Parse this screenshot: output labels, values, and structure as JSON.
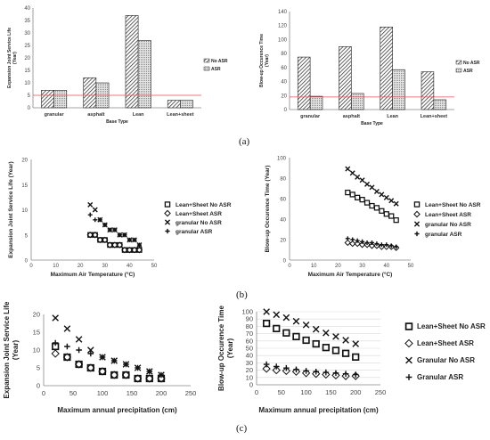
{
  "panel_labels": {
    "a": "(a)",
    "b": "(b)",
    "c": "(c)"
  },
  "colors": {
    "threshold": "#e05050",
    "marker": "#111111",
    "axis": "#888888",
    "grid": "#d9d9d9"
  },
  "chart_data": [
    {
      "type": "bar",
      "xlabel": "Base Type",
      "ylabel": "Expansion Joint Service Life (Year)",
      "categories": [
        "granular",
        "asphalt",
        "Lean",
        "Lean+sheet"
      ],
      "ylim": [
        0,
        40
      ],
      "yticks": [
        0,
        5,
        10,
        15,
        20,
        25,
        30,
        35,
        40
      ],
      "threshold": 5,
      "series": [
        {
          "name": "No ASR",
          "pattern": "hatch",
          "values": [
            7,
            12,
            37,
            3
          ]
        },
        {
          "name": "ASR",
          "pattern": "dots",
          "values": [
            7,
            10,
            27,
            3
          ]
        }
      ],
      "legend": "right"
    },
    {
      "type": "bar",
      "xlabel": "Base Type",
      "ylabel": "Blow-up Occurence Time (Year)",
      "categories": [
        "granular",
        "asphalt",
        "Lean",
        "Lean+sheet"
      ],
      "ylim": [
        0,
        140
      ],
      "yticks": [
        0,
        20,
        40,
        60,
        80,
        100,
        120,
        140
      ],
      "threshold": 18,
      "series": [
        {
          "name": "No ASR",
          "pattern": "hatch",
          "values": [
            75,
            90,
            118,
            54
          ]
        },
        {
          "name": "ASR",
          "pattern": "dots",
          "values": [
            19,
            23,
            57,
            14
          ]
        }
      ],
      "legend": "right"
    },
    {
      "type": "scatter",
      "xlabel": "Maximum Air Temperature (°C)",
      "ylabel": "Expansion Joint Service Life (Year)",
      "xlim": [
        0,
        50
      ],
      "xticks": [
        0,
        10,
        20,
        30,
        40,
        50
      ],
      "ylim": [
        0,
        20
      ],
      "yticks": [
        0,
        5,
        10,
        15,
        20
      ],
      "x": [
        24,
        26,
        28,
        30,
        32,
        34,
        36,
        38,
        40,
        42,
        44
      ],
      "series": [
        {
          "name": "Lean+Sheet No ASR",
          "marker": "square",
          "values": [
            5,
            5,
            4,
            4,
            3,
            3,
            3,
            2,
            2,
            2,
            2
          ]
        },
        {
          "name": "Lean+Sheet ASR",
          "marker": "diamond",
          "values": [
            5,
            5,
            4,
            4,
            3,
            3,
            3,
            2,
            2,
            2,
            2
          ]
        },
        {
          "name": "granular No ASR",
          "marker": "x",
          "values": [
            11,
            10,
            8,
            7,
            6,
            6,
            5,
            5,
            4,
            4,
            3
          ]
        },
        {
          "name": "granular ASR",
          "marker": "plus",
          "values": [
            9,
            8,
            8,
            7,
            6,
            6,
            5,
            5,
            4,
            4,
            3
          ]
        }
      ],
      "legend": "right"
    },
    {
      "type": "scatter",
      "xlabel": "Maximum Air Temperature (°C)",
      "ylabel": "Blow-up Occurence Time (Year)",
      "xlim": [
        0,
        50
      ],
      "xticks": [
        0,
        10,
        20,
        30,
        40,
        50
      ],
      "ylim": [
        0,
        100
      ],
      "yticks": [
        0,
        20,
        40,
        60,
        80,
        100
      ],
      "x": [
        24,
        26,
        28,
        30,
        32,
        34,
        36,
        38,
        40,
        42,
        44
      ],
      "series": [
        {
          "name": "Lean+Sheet No ASR",
          "marker": "square",
          "values": [
            66,
            64,
            61,
            59,
            56,
            53,
            51,
            48,
            45,
            43,
            39
          ]
        },
        {
          "name": "Lean+Sheet ASR",
          "marker": "diamond",
          "values": [
            17,
            16,
            16,
            15,
            15,
            14,
            14,
            13,
            13,
            13,
            12
          ]
        },
        {
          "name": "granular No ASR",
          "marker": "x",
          "values": [
            89,
            85,
            81,
            78,
            74,
            71,
            67,
            64,
            61,
            58,
            55
          ]
        },
        {
          "name": "granular ASR",
          "marker": "plus",
          "values": [
            21,
            20,
            19,
            18,
            17,
            17,
            16,
            15,
            15,
            14,
            13
          ]
        }
      ],
      "legend": "right"
    },
    {
      "type": "scatter",
      "xlabel": "Maximum annual precipitation (cm)",
      "ylabel": "Expansion Joint Service Life (Year)",
      "xlim": [
        0,
        250
      ],
      "xticks": [
        0,
        50,
        100,
        150,
        200,
        250
      ],
      "ylim": [
        0,
        20
      ],
      "yticks": [
        0,
        5,
        10,
        15,
        20
      ],
      "x": [
        20,
        40,
        60,
        80,
        100,
        120,
        140,
        160,
        180,
        200
      ],
      "series": [
        {
          "name": "Lean+Sheet No ASR",
          "marker": "square",
          "values": [
            11,
            8,
            6,
            5,
            4,
            3,
            3,
            2,
            2,
            2
          ]
        },
        {
          "name": "Lean+Sheet ASR",
          "marker": "diamond",
          "values": [
            9,
            8,
            6,
            5,
            4,
            3,
            3,
            2,
            2,
            2
          ]
        },
        {
          "name": "Granular No ASR",
          "marker": "x",
          "values": [
            19,
            16,
            13,
            10,
            8,
            7,
            6,
            5,
            4,
            3
          ]
        },
        {
          "name": "Granular ASR",
          "marker": "plus",
          "values": [
            12,
            11,
            10,
            9,
            8,
            7,
            6,
            5,
            4,
            3
          ]
        }
      ],
      "legend": "none"
    },
    {
      "type": "scatter",
      "xlabel": "Maximum annual precipitation (cm)",
      "ylabel": "Blow-up Occurence Time (Year)",
      "xlim": [
        0,
        250
      ],
      "xticks": [
        0,
        50,
        100,
        150,
        200,
        250
      ],
      "ylim": [
        0,
        100
      ],
      "yticks": [
        0,
        10,
        20,
        30,
        40,
        50,
        60,
        70,
        80,
        90,
        100
      ],
      "x": [
        20,
        40,
        60,
        80,
        100,
        120,
        140,
        160,
        180,
        200
      ],
      "series": [
        {
          "name": "Lean+Sheet No ASR",
          "marker": "square",
          "values": [
            84,
            77,
            71,
            66,
            61,
            56,
            51,
            47,
            43,
            38
          ]
        },
        {
          "name": "Lean+Sheet ASR",
          "marker": "diamond",
          "values": [
            22,
            20,
            19,
            18,
            16,
            15,
            14,
            13,
            12,
            12
          ]
        },
        {
          "name": "Granular No ASR",
          "marker": "x",
          "values": [
            100,
            96,
            92,
            87,
            82,
            76,
            71,
            66,
            61,
            56
          ]
        },
        {
          "name": "Granular ASR",
          "marker": "plus",
          "values": [
            28,
            25,
            23,
            21,
            19,
            18,
            17,
            16,
            15,
            14
          ]
        }
      ],
      "legend": "right"
    }
  ]
}
